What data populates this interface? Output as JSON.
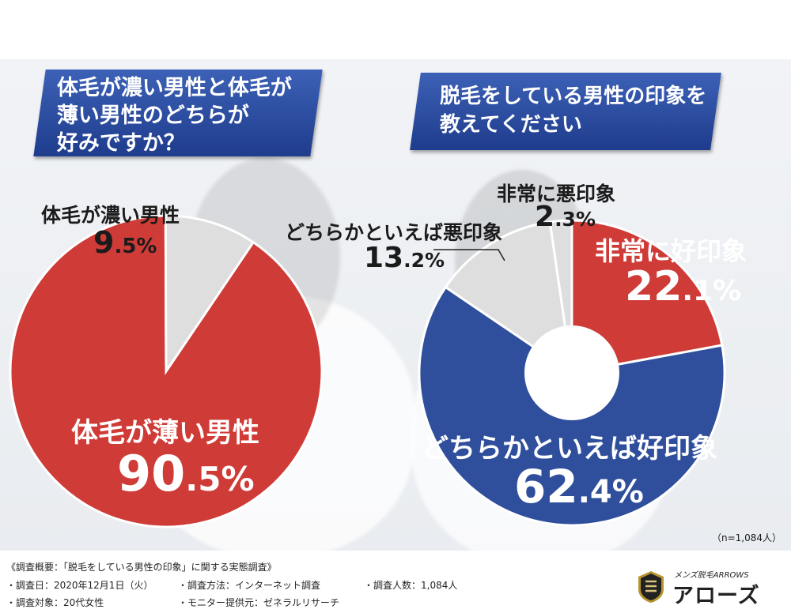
{
  "left_chart": {
    "question": [
      "体毛が濃い男性と体毛が",
      "薄い男性のどちらが",
      "好みですか？"
    ],
    "slices": [
      {
        "label": "体毛が薄い男性",
        "value_main": "90",
        "value_dec": ".5",
        "unit": "%",
        "color": "#cf3b37"
      },
      {
        "label": "体毛が濃い男性",
        "value_main": "9",
        "value_dec": ".5",
        "unit": "%",
        "color": "#dedede"
      }
    ]
  },
  "right_chart": {
    "question": [
      "脱毛をしている男性の印象を",
      "教えてください"
    ],
    "slices": [
      {
        "label": "非常に好印象",
        "value_main": "22",
        "value_dec": ".1",
        "unit": "%",
        "color": "#cf3b37"
      },
      {
        "label": "どちらかといえば好印象",
        "value_main": "62",
        "value_dec": ".4",
        "unit": "%",
        "color": "#2f4f9c"
      },
      {
        "label": "どちらかといえば悪印象",
        "value_main": "13",
        "value_dec": ".2",
        "unit": "%",
        "color": "#dedede"
      },
      {
        "label": "非常に悪印象",
        "value_main": "2",
        "value_dec": ".3",
        "unit": "%",
        "color": "#dedede"
      }
    ],
    "sample_note": "（n=1,084人）"
  },
  "chart_data": [
    {
      "type": "pie",
      "title": "体毛が濃い男性と体毛が薄い男性のどちらが好みですか？",
      "categories": [
        "体毛が薄い男性",
        "体毛が濃い男性"
      ],
      "values": [
        90.5,
        9.5
      ]
    },
    {
      "type": "pie",
      "title": "脱毛をしている男性の印象を教えてください",
      "categories": [
        "非常に好印象",
        "どちらかといえば好印象",
        "どちらかといえば悪印象",
        "非常に悪印象"
      ],
      "values": [
        22.1,
        62.4,
        13.2,
        2.3
      ]
    }
  ],
  "footer": {
    "summary": "《調査概要：「脱毛をしている男性の印象」に関する実態調査》",
    "date": "・調査日：2020年12月1日（火）",
    "method": "・調査方法：インターネット調査",
    "count": "・調査人数：1,084人",
    "target": "・調査対象：20代女性",
    "provider": "・モニター提供元：ゼネラルリサーチ"
  },
  "logo": {
    "small": "メンズ脱毛ARROWS",
    "main": "アローズ"
  }
}
